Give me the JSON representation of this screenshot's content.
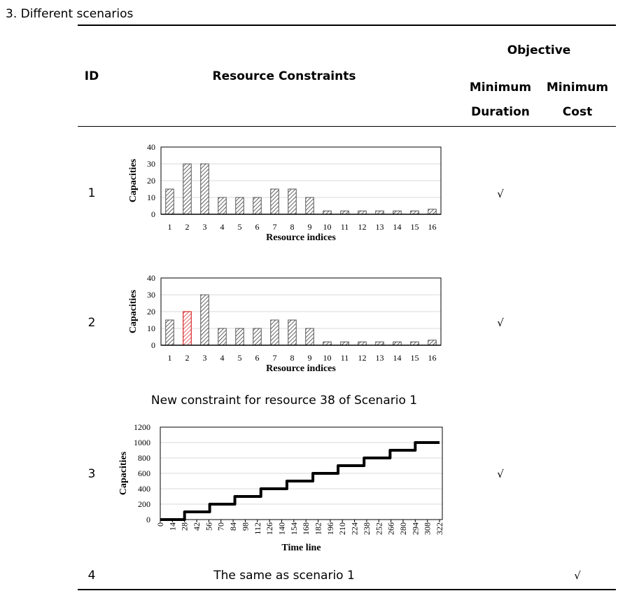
{
  "section_title": "3.   Different scenarios",
  "table": {
    "headers": {
      "id": "ID",
      "resource_constraints": "Resource Constraints",
      "objective": "Objective",
      "min_duration_1": "Minimum",
      "min_duration_2": "Duration",
      "min_cost_1": "Minimum",
      "min_cost_2": "Cost"
    },
    "rows": [
      {
        "id": "1",
        "duration_check": "√",
        "cost_check": ""
      },
      {
        "id": "2",
        "duration_check": "√",
        "cost_check": ""
      },
      {
        "id": "3",
        "duration_check": "√",
        "cost_check": "",
        "note": "New constraint for resource 38 of Scenario 1"
      },
      {
        "id": "4",
        "constraint_text": "The same as scenario 1",
        "duration_check": "",
        "cost_check": "√"
      }
    ]
  },
  "chart_data": [
    {
      "type": "bar",
      "xlabel": "Resource indices",
      "ylabel": "Capacities",
      "ylim": [
        0,
        40
      ],
      "yticks": [
        0,
        10,
        20,
        30,
        40
      ],
      "grid": true,
      "categories": [
        "1",
        "2",
        "3",
        "4",
        "5",
        "6",
        "7",
        "8",
        "9",
        "10",
        "11",
        "12",
        "13",
        "14",
        "15",
        "16"
      ],
      "values": [
        15,
        30,
        30,
        10,
        10,
        10,
        15,
        15,
        10,
        2,
        2,
        2,
        2,
        2,
        2,
        3
      ],
      "bar_color": "#000000",
      "highlight": []
    },
    {
      "type": "bar",
      "xlabel": "Resource indices",
      "ylabel": "Capacities",
      "ylim": [
        0,
        40
      ],
      "yticks": [
        0,
        10,
        20,
        30,
        40
      ],
      "grid": true,
      "categories": [
        "1",
        "2",
        "3",
        "4",
        "5",
        "6",
        "7",
        "8",
        "9",
        "10",
        "11",
        "12",
        "13",
        "14",
        "15",
        "16"
      ],
      "values": [
        15,
        20,
        30,
        10,
        10,
        10,
        15,
        15,
        10,
        2,
        2,
        2,
        2,
        2,
        2,
        3
      ],
      "bar_color": "#000000",
      "highlight": [
        1
      ],
      "highlight_color": "#d00000"
    },
    {
      "type": "line",
      "step": true,
      "xlabel": "Time line",
      "ylabel": "Capacities",
      "ylim": [
        0,
        1200
      ],
      "yticks": [
        0,
        200,
        400,
        600,
        800,
        1000,
        1200
      ],
      "grid": true,
      "xticks": [
        0,
        14,
        28,
        42,
        56,
        70,
        84,
        98,
        112,
        126,
        140,
        154,
        168,
        182,
        196,
        210,
        224,
        238,
        252,
        266,
        280,
        294,
        308,
        322
      ],
      "xlim": [
        0,
        322
      ],
      "x": [
        0,
        28,
        57,
        86,
        116,
        146,
        176,
        205,
        235,
        265,
        294,
        322
      ],
      "values": [
        0,
        100,
        200,
        300,
        400,
        500,
        600,
        700,
        800,
        900,
        1000,
        1000
      ],
      "line_color": "#000000"
    }
  ]
}
